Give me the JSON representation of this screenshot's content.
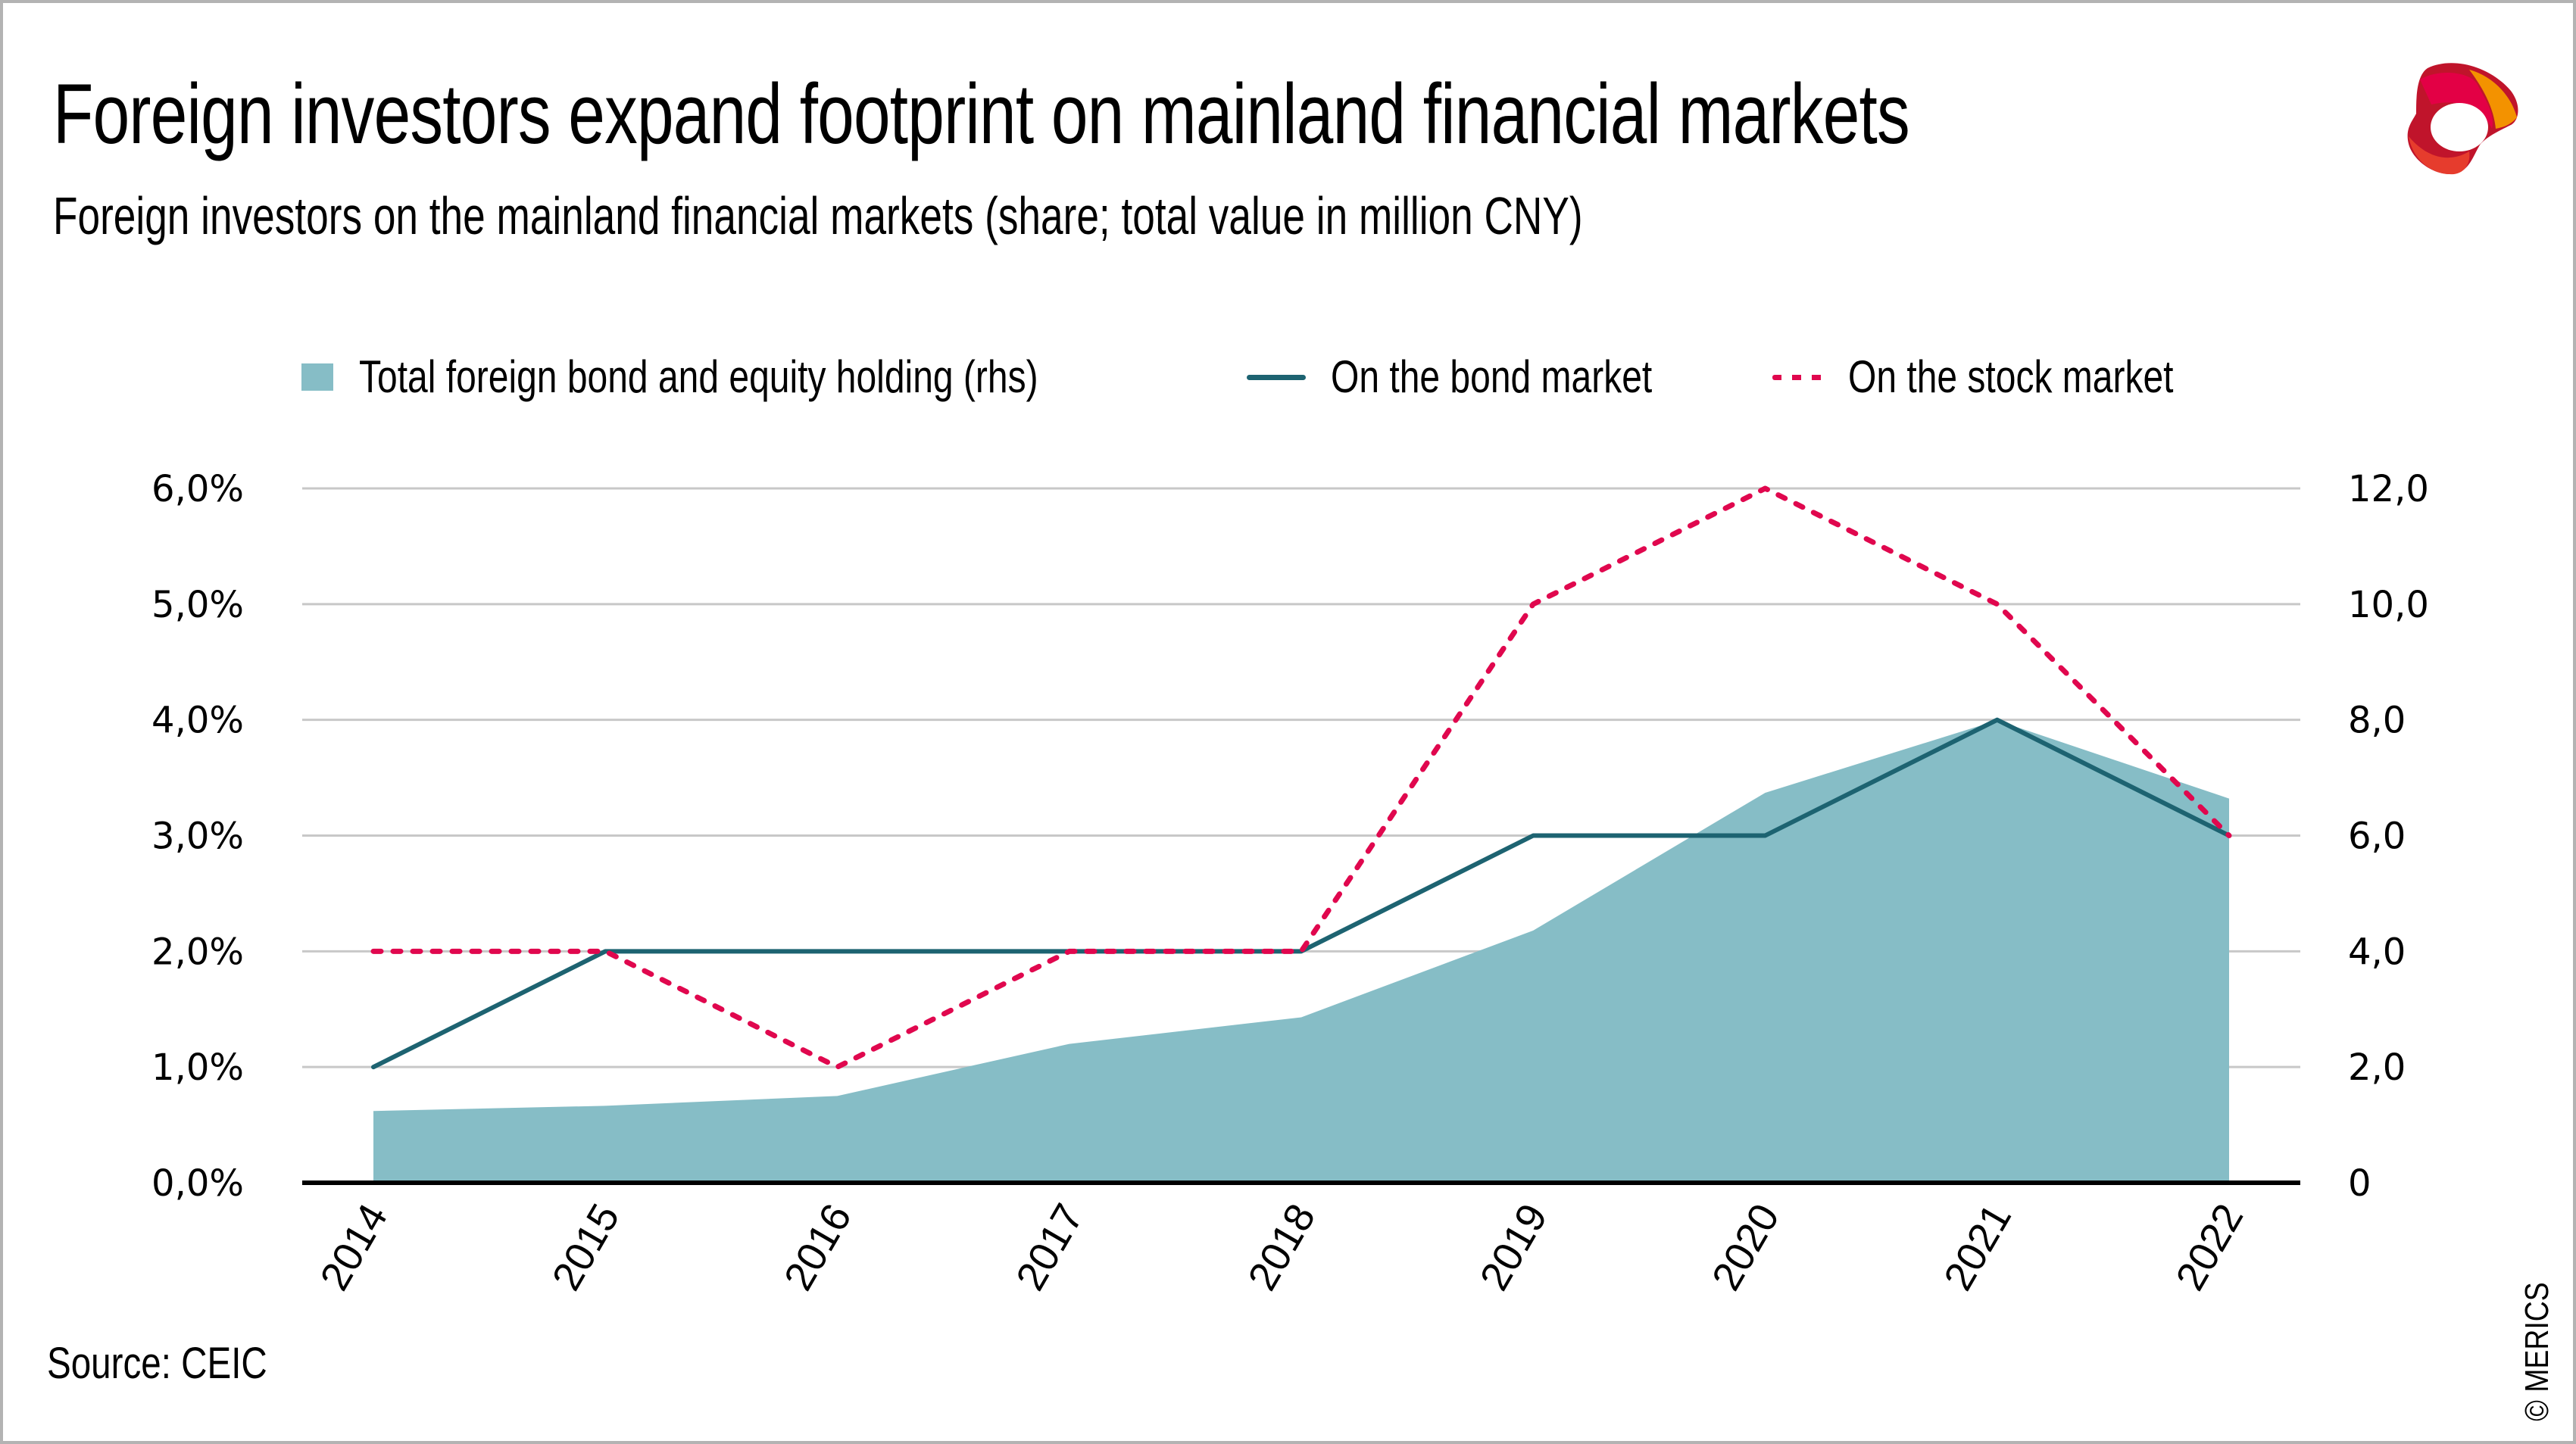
{
  "title": "Foreign investors expand footprint on mainland financial markets",
  "subtitle": "Foreign investors on the mainland financial markets (share; total value in million CNY)",
  "source": "Source: CEIC",
  "copyright": "© MERICS",
  "logo": {
    "name": "MERICS logo",
    "colors": [
      "#c0142b",
      "#e30045",
      "#f39200",
      "#e63c2d",
      "#8f1616"
    ]
  },
  "legend": {
    "area_label": "Total foreign bond and equity holding (rhs)",
    "bond_label": "On the bond market",
    "stock_label": "On the stock market"
  },
  "colors": {
    "area": "#86bdc6",
    "bond": "#1d6371",
    "stock": "#e0074e",
    "grid": "#c8c8c8",
    "axis": "#000000",
    "frame": "#b3b3b3"
  },
  "chart_data": {
    "type": "line",
    "title": "Foreign investors expand footprint on mainland financial markets",
    "subtitle": "Foreign investors on the mainland financial markets (share; total value in million CNY)",
    "categories": [
      "2014",
      "2015",
      "2016",
      "2017",
      "2018",
      "2019",
      "2020",
      "2021",
      "2022"
    ],
    "series": [
      {
        "name": "Total foreign bond and equity holding (rhs)",
        "type": "area",
        "axis": "right",
        "values": [
          1.24,
          1.33,
          1.5,
          2.4,
          2.86,
          4.36,
          6.74,
          7.99,
          6.64
        ]
      },
      {
        "name": "On the bond market",
        "type": "line",
        "axis": "left",
        "values": [
          1.0,
          2.0,
          2.0,
          2.0,
          2.0,
          3.0,
          3.0,
          4.0,
          3.0
        ]
      },
      {
        "name": "On the stock market",
        "type": "line",
        "style": "dotted",
        "axis": "left",
        "values": [
          2.0,
          2.0,
          1.0,
          2.0,
          2.0,
          5.0,
          6.0,
          5.0,
          3.0
        ]
      }
    ],
    "y_left": {
      "range": [
        0,
        6
      ],
      "ticks": [
        0,
        1,
        2,
        3,
        4,
        5,
        6
      ],
      "tick_labels": [
        "0,0%",
        "1,0%",
        "2,0%",
        "3,0%",
        "4,0%",
        "5,0%",
        "6,0%"
      ]
    },
    "y_right": {
      "range": [
        0,
        12
      ],
      "ticks": [
        0,
        2,
        4,
        6,
        8,
        10,
        12
      ],
      "tick_labels": [
        "0",
        "2,0",
        "4,0",
        "6,0",
        "8,0",
        "10,0",
        "12,0"
      ]
    },
    "xlabel": "",
    "ylabel": "",
    "grid": true,
    "legend_position": "top"
  }
}
